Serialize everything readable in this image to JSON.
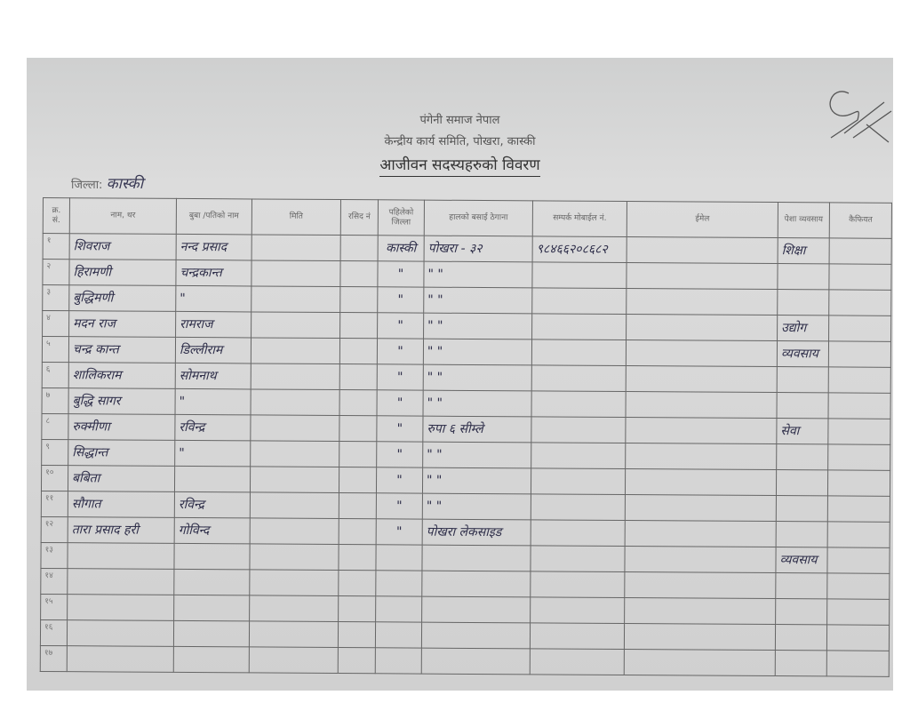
{
  "header": {
    "org": "पंगेनी समाज नेपाल",
    "committee": "केन्द्रीय कार्य समिति, पोखरा, कास्की",
    "title": "आजीवन सदस्यहरुको विवरण"
  },
  "district": {
    "label": "जिल्ला:",
    "value": "कास्की"
  },
  "columns": [
    "क्र. सं.",
    "नाम, थर",
    "बुबा /पतिको नाम",
    "मिति",
    "रसिद नं",
    "पहिलेको जिल्ला",
    "हालको बसाई ठेगाना",
    "सम्पर्क मोबाईल नं.",
    "ईमेल",
    "पेशा व्यवसाय",
    "कैफियत"
  ],
  "rows": [
    [
      "१",
      "शिवराज",
      "नन्द प्रसाद",
      "",
      "",
      "कास्की",
      "पोखरा - ३२",
      "९८४६६२०८६८२",
      "",
      "शिक्षा",
      ""
    ],
    [
      "२",
      "हिरामणी",
      "चन्द्रकान्त",
      "",
      "",
      "\"",
      "\"  \"",
      "",
      "",
      "",
      ""
    ],
    [
      "३",
      "बुद्धिमणी",
      "\"",
      "",
      "",
      "\"",
      "\"  \"",
      "",
      "",
      "",
      ""
    ],
    [
      "४",
      "मदन राज",
      "रामराज",
      "",
      "",
      "\"",
      "\"  \"",
      "",
      "",
      "उद्योग",
      ""
    ],
    [
      "५",
      "चन्द्र कान्त",
      "डिल्लीराम",
      "",
      "",
      "\"",
      "\"  \"",
      "",
      "",
      "व्यवसाय",
      ""
    ],
    [
      "६",
      "शालिकराम",
      "सोमनाथ",
      "",
      "",
      "\"",
      "\"  \"",
      "",
      "",
      "",
      ""
    ],
    [
      "७",
      "बुद्धि सागर",
      "\"",
      "",
      "",
      "\"",
      "\"  \"",
      "",
      "",
      "",
      ""
    ],
    [
      "८",
      "रुक्मीणा",
      "रविन्द्र",
      "",
      "",
      "\"",
      "रुपा ६ सीम्ले",
      "",
      "",
      "सेवा",
      ""
    ],
    [
      "९",
      "सिद्धान्त",
      "\"",
      "",
      "",
      "\"",
      "\"  \"",
      "",
      "",
      "",
      ""
    ],
    [
      "१०",
      "बबिता",
      "",
      "",
      "",
      "\"",
      "\"  \"",
      "",
      "",
      "",
      ""
    ],
    [
      "११",
      "सौगात",
      "रविन्द्र",
      "",
      "",
      "\"",
      "\"  \"",
      "",
      "",
      "",
      ""
    ],
    [
      "१२",
      "तारा प्रसाद हरी",
      "गोविन्द",
      "",
      "",
      "\"",
      "पोखरा लेकसाइड",
      "",
      "",
      "",
      ""
    ],
    [
      "१३",
      "",
      "",
      "",
      "",
      "",
      "",
      "",
      "",
      "व्यवसाय",
      ""
    ],
    [
      "१४",
      "",
      "",
      "",
      "",
      "",
      "",
      "",
      "",
      "",
      ""
    ],
    [
      "१५",
      "",
      "",
      "",
      "",
      "",
      "",
      "",
      "",
      "",
      ""
    ],
    [
      "१६",
      "",
      "",
      "",
      "",
      "",
      "",
      "",
      "",
      "",
      ""
    ],
    [
      "१७",
      "",
      "",
      "",
      "",
      "",
      "",
      "",
      "",
      "",
      ""
    ]
  ]
}
